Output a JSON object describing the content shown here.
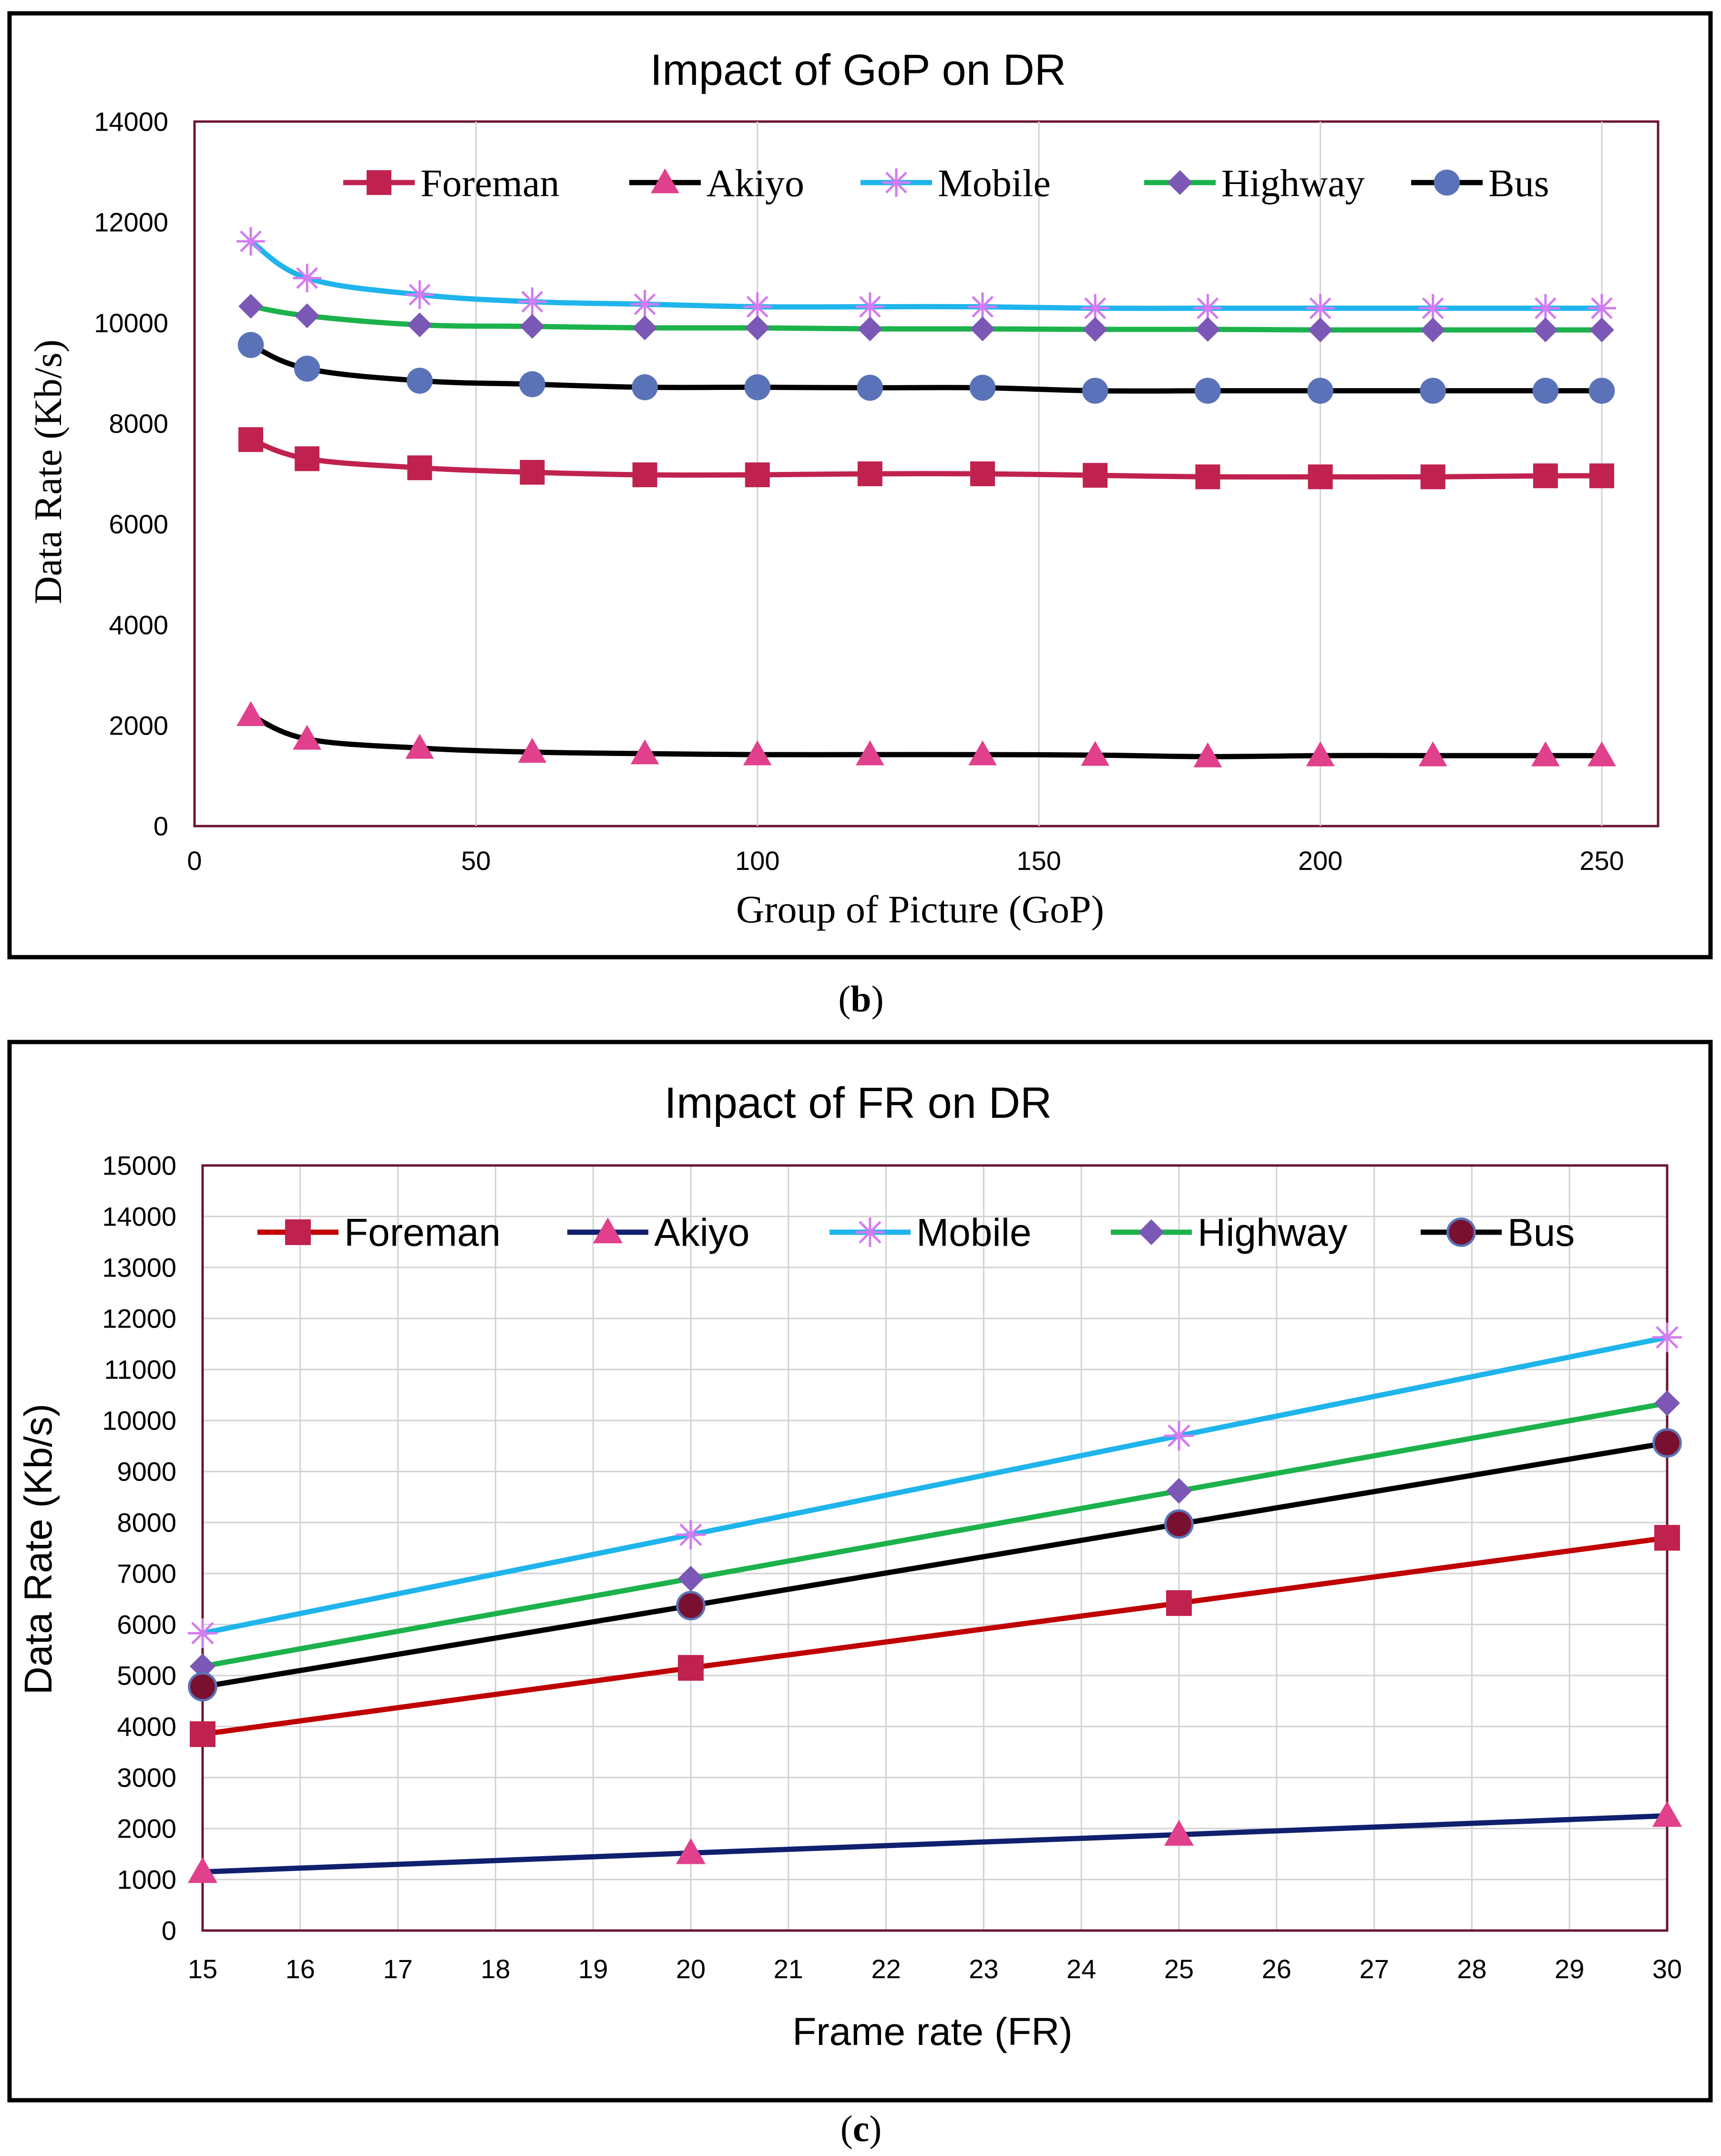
{
  "chart_data": [
    {
      "type": "line",
      "title": "Impact of GoP on DR",
      "xlabel": "Group of Picture (GoP)",
      "ylabel": "Data Rate (Kb/s)",
      "xlim": [
        0,
        260
      ],
      "ylim": [
        0,
        14000
      ],
      "xticks": [
        "0",
        "50",
        "100",
        "150",
        "200",
        "250"
      ],
      "yticks": [
        "0",
        "2000",
        "4000",
        "6000",
        "8000",
        "10000",
        "12000",
        "14000"
      ],
      "grid": "vertical",
      "legend_position": "top",
      "x": [
        10,
        20,
        40,
        60,
        80,
        100,
        120,
        140,
        160,
        180,
        200,
        220,
        240,
        250
      ],
      "series": [
        {
          "name": "Foreman",
          "color": "#C0224F",
          "marker": "square",
          "values": [
            7680,
            7300,
            7120,
            7030,
            6980,
            6980,
            7000,
            7000,
            6970,
            6940,
            6940,
            6940,
            6960,
            6960
          ]
        },
        {
          "name": "Akiyo",
          "color": "#000000",
          "marker": "triangle",
          "marker_color": "#E0408C",
          "values": [
            2200,
            1730,
            1550,
            1470,
            1440,
            1420,
            1420,
            1420,
            1410,
            1380,
            1400,
            1400,
            1400,
            1400
          ]
        },
        {
          "name": "Mobile",
          "color": "#1FB4EC",
          "marker": "star",
          "marker_color": "#D37BF0",
          "values": [
            11620,
            10890,
            10560,
            10420,
            10370,
            10320,
            10320,
            10320,
            10290,
            10290,
            10290,
            10290,
            10290,
            10290
          ]
        },
        {
          "name": "Highway",
          "color": "#1CB24B",
          "marker": "diamond",
          "marker_color": "#7B58B5",
          "values": [
            10330,
            10140,
            9960,
            9930,
            9900,
            9900,
            9880,
            9880,
            9870,
            9870,
            9860,
            9860,
            9860,
            9860
          ]
        },
        {
          "name": "Bus",
          "color": "#000000",
          "marker": "circle",
          "marker_color": "#5A73B8",
          "values": [
            9560,
            9090,
            8850,
            8780,
            8720,
            8720,
            8710,
            8710,
            8650,
            8650,
            8650,
            8650,
            8650,
            8650
          ]
        }
      ]
    },
    {
      "type": "line",
      "title": "Impact of FR on DR",
      "xlabel": "Frame rate (FR)",
      "ylabel": "Data Rate (Kb/s)",
      "xlim": [
        15,
        30
      ],
      "ylim": [
        0,
        15000
      ],
      "xticks": [
        "15",
        "16",
        "17",
        "18",
        "19",
        "20",
        "21",
        "22",
        "23",
        "24",
        "25",
        "26",
        "27",
        "28",
        "29",
        "30"
      ],
      "yticks": [
        "0",
        "1000",
        "2000",
        "3000",
        "4000",
        "5000",
        "6000",
        "7000",
        "8000",
        "9000",
        "10000",
        "11000",
        "12000",
        "13000",
        "14000",
        "15000"
      ],
      "grid": "both",
      "legend_position": "top",
      "x": [
        15,
        20,
        25,
        30
      ],
      "series": [
        {
          "name": "Foreman",
          "color": "#C00000",
          "marker": "square",
          "marker_color": "#C0224F",
          "values": [
            3850,
            5150,
            6420,
            7700
          ]
        },
        {
          "name": "Akiyo",
          "color": "#10206E",
          "marker": "triangle",
          "marker_color": "#E0408C",
          "values": [
            1150,
            1520,
            1880,
            2250
          ]
        },
        {
          "name": "Mobile",
          "color": "#1FB4EC",
          "marker": "star",
          "marker_color": "#D37BF0",
          "values": [
            5830,
            7760,
            9700,
            11630
          ]
        },
        {
          "name": "Highway",
          "color": "#1CB24B",
          "marker": "diamond",
          "marker_color": "#7B58B5",
          "values": [
            5180,
            6900,
            8620,
            10340
          ]
        },
        {
          "name": "Bus",
          "color": "#000000",
          "marker": "circle",
          "marker_color": "#7A1030",
          "values": [
            4780,
            6370,
            7970,
            9560
          ]
        }
      ]
    }
  ],
  "captions": {
    "b": "b",
    "c": "c"
  }
}
